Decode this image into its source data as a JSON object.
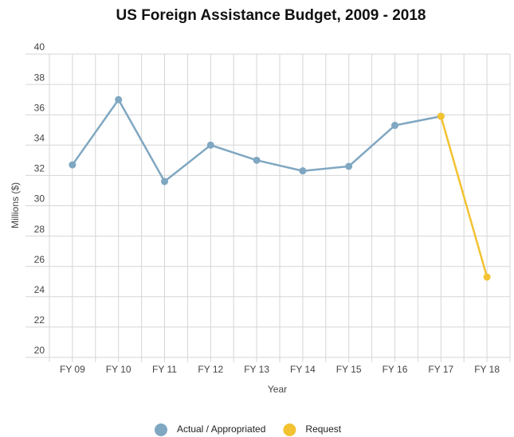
{
  "chart_data": {
    "type": "line",
    "title": "US Foreign Assistance Budget, 2009 - 2018",
    "x_label": "Year",
    "y_label": "Millions ($)",
    "categories": [
      "FY 09",
      "FY 10",
      "FY 11",
      "FY 12",
      "FY 13",
      "FY 14",
      "FY 15",
      "FY 16",
      "FY 17",
      "FY 18"
    ],
    "series": [
      {
        "name": "Actual / Appropriated",
        "color": "#7fa7c1",
        "values": [
          32.7,
          37.0,
          31.6,
          34.0,
          33.0,
          32.3,
          32.6,
          35.3,
          35.9,
          null
        ]
      },
      {
        "name": "Request",
        "color": "#f2c230",
        "values": [
          null,
          null,
          null,
          null,
          null,
          null,
          null,
          null,
          35.9,
          25.3
        ]
      }
    ],
    "ylim": [
      20,
      40
    ],
    "yticks": [
      20,
      22,
      24,
      26,
      28,
      30,
      32,
      34,
      36,
      38,
      40
    ],
    "grid": true,
    "legend": "bottom"
  }
}
